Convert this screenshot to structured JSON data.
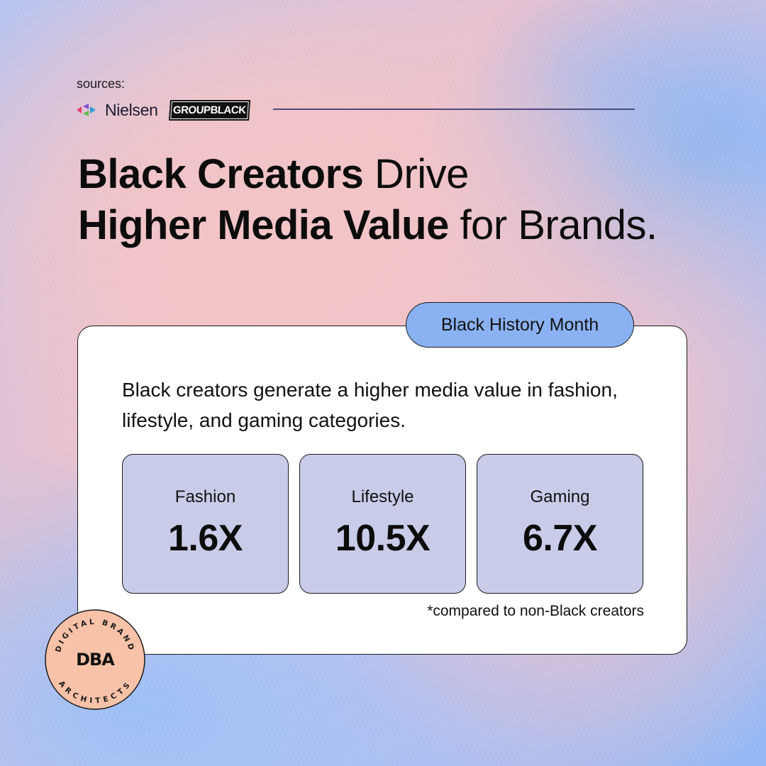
{
  "sources": {
    "label": "sources:",
    "logos": [
      {
        "name": "Nielsen",
        "icon": "nielsen-logo-icon",
        "colors": [
          "#e83f6f",
          "#7b4fd6",
          "#2e9bd6",
          "#5fbf4b"
        ]
      },
      {
        "name": "GROUPBLACK",
        "icon": "groupblack-logo"
      }
    ]
  },
  "headline": {
    "part1_bold": "Black Creators",
    "part2": " Drive ",
    "part3_bold": "Higher Media Value",
    "part4": " for Brands."
  },
  "card": {
    "tag": "Black History Month",
    "lead": "Black creators generate a higher media value in fashion, lifestyle, and gaming categories.",
    "stats": [
      {
        "label": "Fashion",
        "value": "1.6X"
      },
      {
        "label": "Lifestyle",
        "value": "10.5X"
      },
      {
        "label": "Gaming",
        "value": "6.7X"
      }
    ],
    "footnote": "*compared to non-Black creators"
  },
  "badge": {
    "top_text": "DIGITAL BRAND",
    "bottom_text": "ARCHITECTS",
    "monogram": "DBA",
    "fill": "#f8c2a8"
  },
  "colors": {
    "pill": "#8ab2f3",
    "stat_box": "#c9cce8",
    "rule": "#4c4a7e"
  }
}
